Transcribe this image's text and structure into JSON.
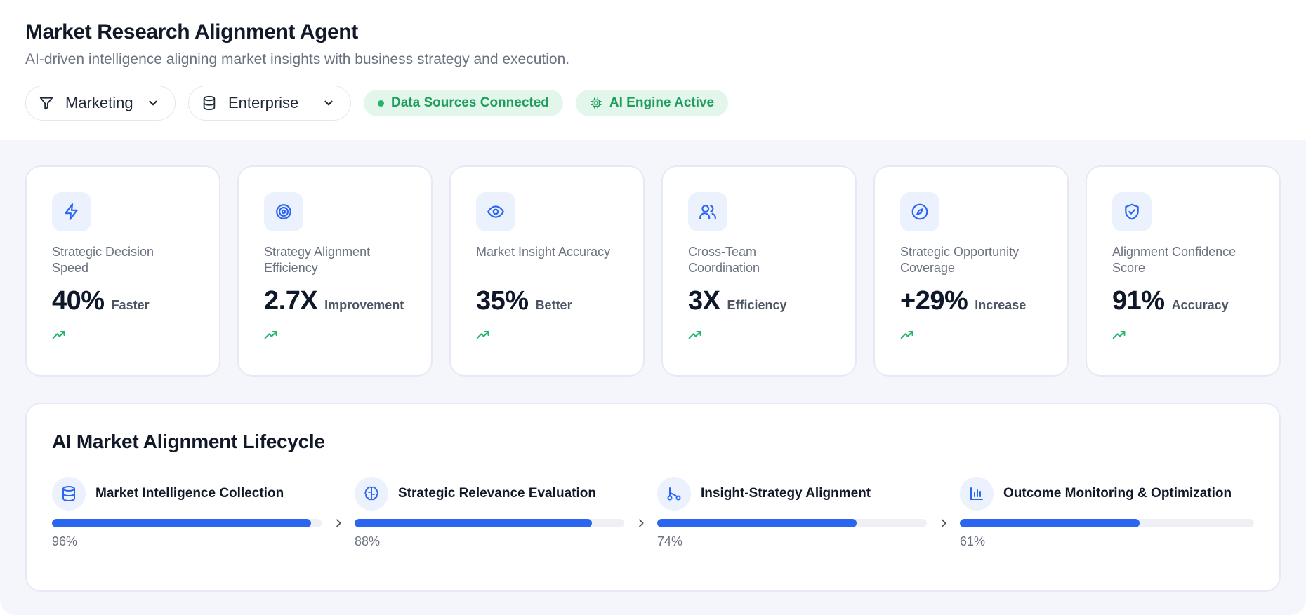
{
  "header": {
    "title": "Market Research Alignment Agent",
    "subtitle": "AI-driven intelligence aligning market insights with business strategy and execution.",
    "filters": [
      {
        "label": "Marketing",
        "icon": "filter-icon"
      },
      {
        "label": "Enterprise",
        "icon": "database-icon"
      }
    ],
    "status": [
      {
        "label": "Data Sources Connected",
        "icon": "status-dot"
      },
      {
        "label": "AI Engine Active",
        "icon": "cpu-icon"
      }
    ]
  },
  "kpis": [
    {
      "label": "Strategic Decision Speed",
      "value": "40%",
      "unit": "Faster",
      "icon": "bolt-icon"
    },
    {
      "label": "Strategy Alignment Efficiency",
      "value": "2.7X",
      "unit": "Improvement",
      "icon": "target-icon"
    },
    {
      "label": "Market Insight Accuracy",
      "value": "35%",
      "unit": "Better",
      "icon": "eye-icon"
    },
    {
      "label": "Cross-Team Coordination",
      "value": "3X",
      "unit": "Efficiency",
      "icon": "users-icon"
    },
    {
      "label": "Strategic Opportunity Coverage",
      "value": "+29%",
      "unit": "Increase",
      "icon": "compass-icon"
    },
    {
      "label": "Alignment Confidence Score",
      "value": "91%",
      "unit": "Accuracy",
      "icon": "shield-check-icon"
    }
  ],
  "lifecycle": {
    "title": "AI Market Alignment Lifecycle",
    "stages": [
      {
        "name": "Market Intelligence Collection",
        "progress": 96,
        "pct_label": "96%",
        "icon": "database-icon"
      },
      {
        "name": "Strategic Relevance Evaluation",
        "progress": 88,
        "pct_label": "88%",
        "icon": "brain-icon"
      },
      {
        "name": "Insight-Strategy Alignment",
        "progress": 74,
        "pct_label": "74%",
        "icon": "route-icon"
      },
      {
        "name": "Outcome Monitoring & Optimization",
        "progress": 61,
        "pct_label": "61%",
        "icon": "bar-chart-icon"
      }
    ]
  },
  "colors": {
    "accent": "#2b66f0",
    "success": "#1f9d5c",
    "success_bg": "#e3f6ec",
    "icon_bg": "#ecf1fe"
  }
}
